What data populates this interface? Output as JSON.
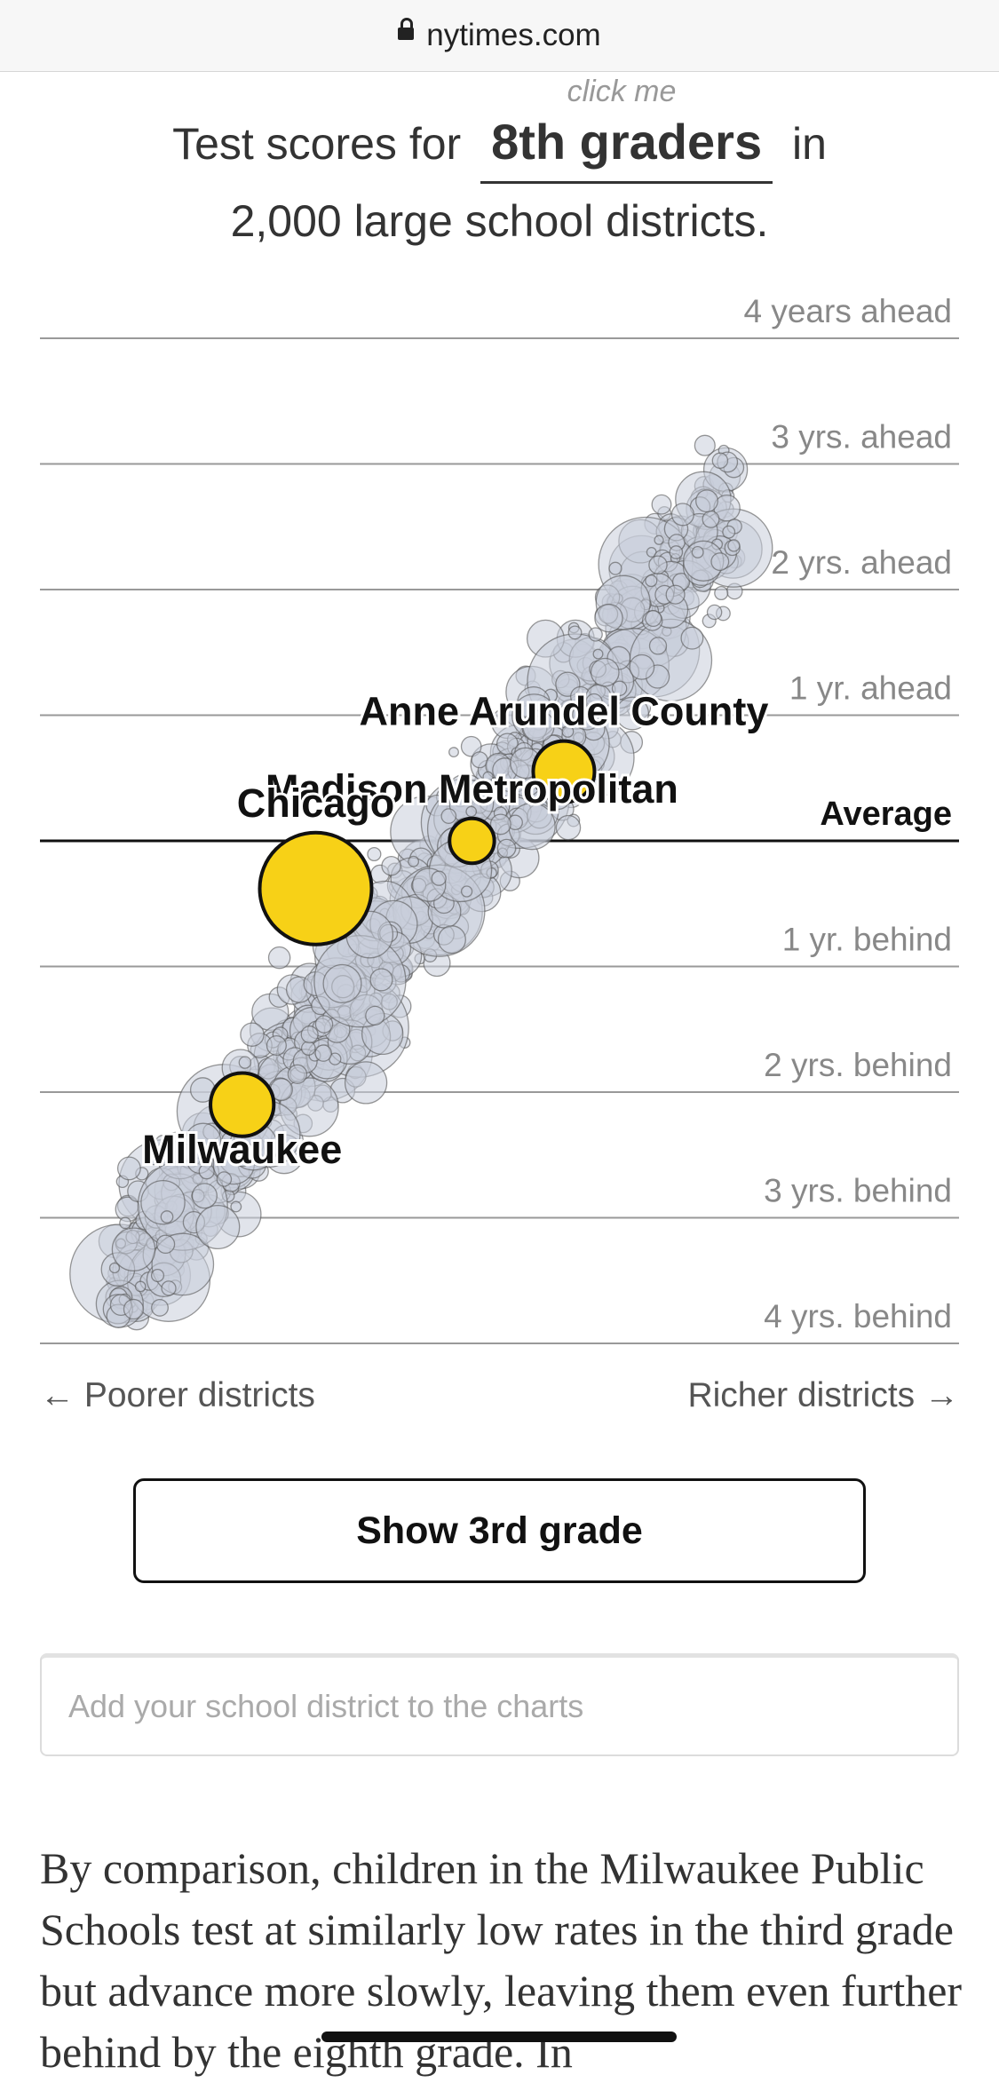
{
  "browser": {
    "url": "nytimes.com"
  },
  "headline": {
    "hint": "click me",
    "prefix": "Test scores for",
    "grade": "8th graders",
    "suffix": "in",
    "line2": "2,000 large school districts."
  },
  "chart_data": {
    "type": "scatter",
    "xlabel_left": "← Poorer districts",
    "xlabel_right": "Richer districts →",
    "ylim": [
      -4,
      4
    ],
    "gridlines": [
      {
        "value": 4,
        "label": "4 years ahead"
      },
      {
        "value": 3,
        "label": "3 yrs. ahead"
      },
      {
        "value": 2,
        "label": "2 yrs. ahead"
      },
      {
        "value": 1,
        "label": "1 yr. ahead"
      },
      {
        "value": 0,
        "label": "Average",
        "emphasis": true
      },
      {
        "value": -1,
        "label": "1 yr. behind"
      },
      {
        "value": -2,
        "label": "2 yrs. behind"
      },
      {
        "value": -3,
        "label": "3 yrs. behind"
      },
      {
        "value": -4,
        "label": "4 yrs. behind"
      }
    ],
    "highlighted": [
      {
        "name": "Anne Arundel County",
        "x": 0.57,
        "y": 0.55,
        "size": 0.3,
        "label_anchor": "above"
      },
      {
        "name": "Madison Metropolitan",
        "x": 0.47,
        "y": 0.0,
        "size": 0.16,
        "label_anchor": "above"
      },
      {
        "name": "Chicago",
        "x": 0.3,
        "y": -0.38,
        "size": 1.0,
        "label_anchor": "above"
      },
      {
        "name": "Milwaukee",
        "x": 0.22,
        "y": -2.1,
        "size": 0.32,
        "label_anchor": "below"
      }
    ],
    "colors": {
      "highlight": "#f7d117",
      "dots": "#c9ceda",
      "dot_stroke": "#555555"
    }
  },
  "controls": {
    "toggle_label": "Show 3rd grade",
    "search_placeholder": "Add your school district to the charts"
  },
  "article": {
    "paragraph": "By comparison, children in the Milwaukee Public Schools test at similarly low rates in the third grade but advance more slowly, leaving them even further behind by the eighth grade. In"
  }
}
